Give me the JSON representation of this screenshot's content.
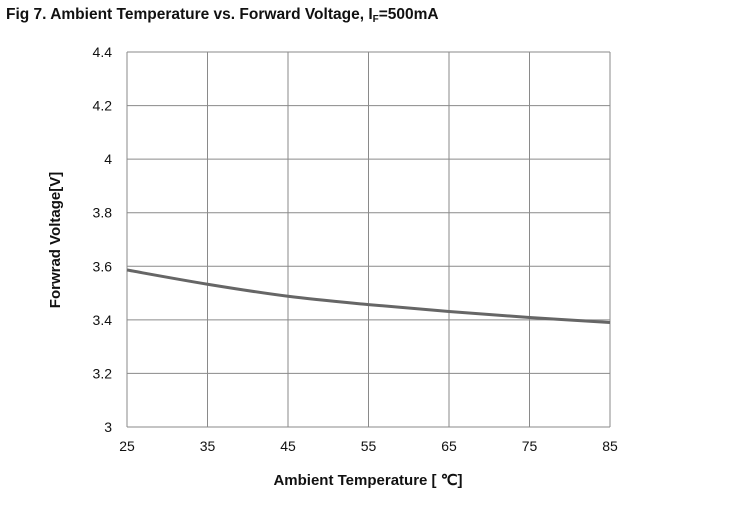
{
  "chart_data": {
    "type": "line",
    "title": "Fig 7. Ambient Temperature vs. Forward Voltage, I",
    "title_subscript": "F",
    "title_suffix": "=500mA",
    "xlabel": "Ambient Temperature [ ℃]",
    "ylabel": "Forwrad Voltage[V]",
    "xlim": [
      25,
      85
    ],
    "ylim": [
      3,
      4.4
    ],
    "xticks": [
      "25",
      "35",
      "45",
      "55",
      "65",
      "75",
      "85"
    ],
    "yticks": [
      "3",
      "3.2",
      "3.4",
      "3.6",
      "3.8",
      "4",
      "4.2",
      "4.4"
    ],
    "grid": true,
    "series": [
      {
        "name": "Forward Voltage",
        "color": "#666666",
        "x": [
          25,
          35,
          45,
          55,
          65,
          75,
          85
        ],
        "y": [
          3.586,
          3.533,
          3.488,
          3.457,
          3.431,
          3.409,
          3.39
        ]
      }
    ]
  }
}
